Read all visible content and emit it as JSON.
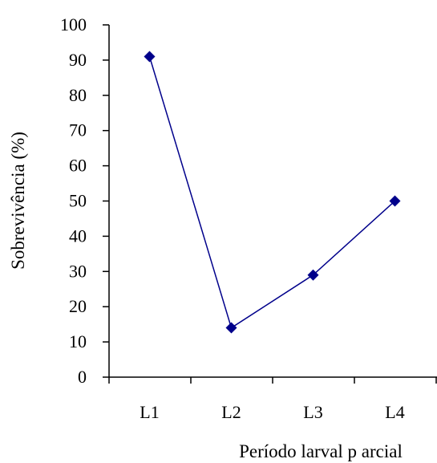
{
  "chart_data": {
    "type": "line",
    "title": "",
    "xlabel": "Período larval p arcial",
    "ylabel": "Sobrevivência (%)",
    "categories": [
      "L1",
      "L2",
      "L3",
      "L4"
    ],
    "series": [
      {
        "values": [
          91,
          14,
          29,
          50
        ]
      }
    ],
    "ylim": [
      0,
      100
    ],
    "yticks": [
      0,
      10,
      20,
      30,
      40,
      50,
      60,
      70,
      80,
      90,
      100
    ],
    "grid": false,
    "legend": "none",
    "colors": {
      "line": "#00008B",
      "marker": "#00008B",
      "axis": "#000000"
    },
    "marker": "diamond"
  }
}
